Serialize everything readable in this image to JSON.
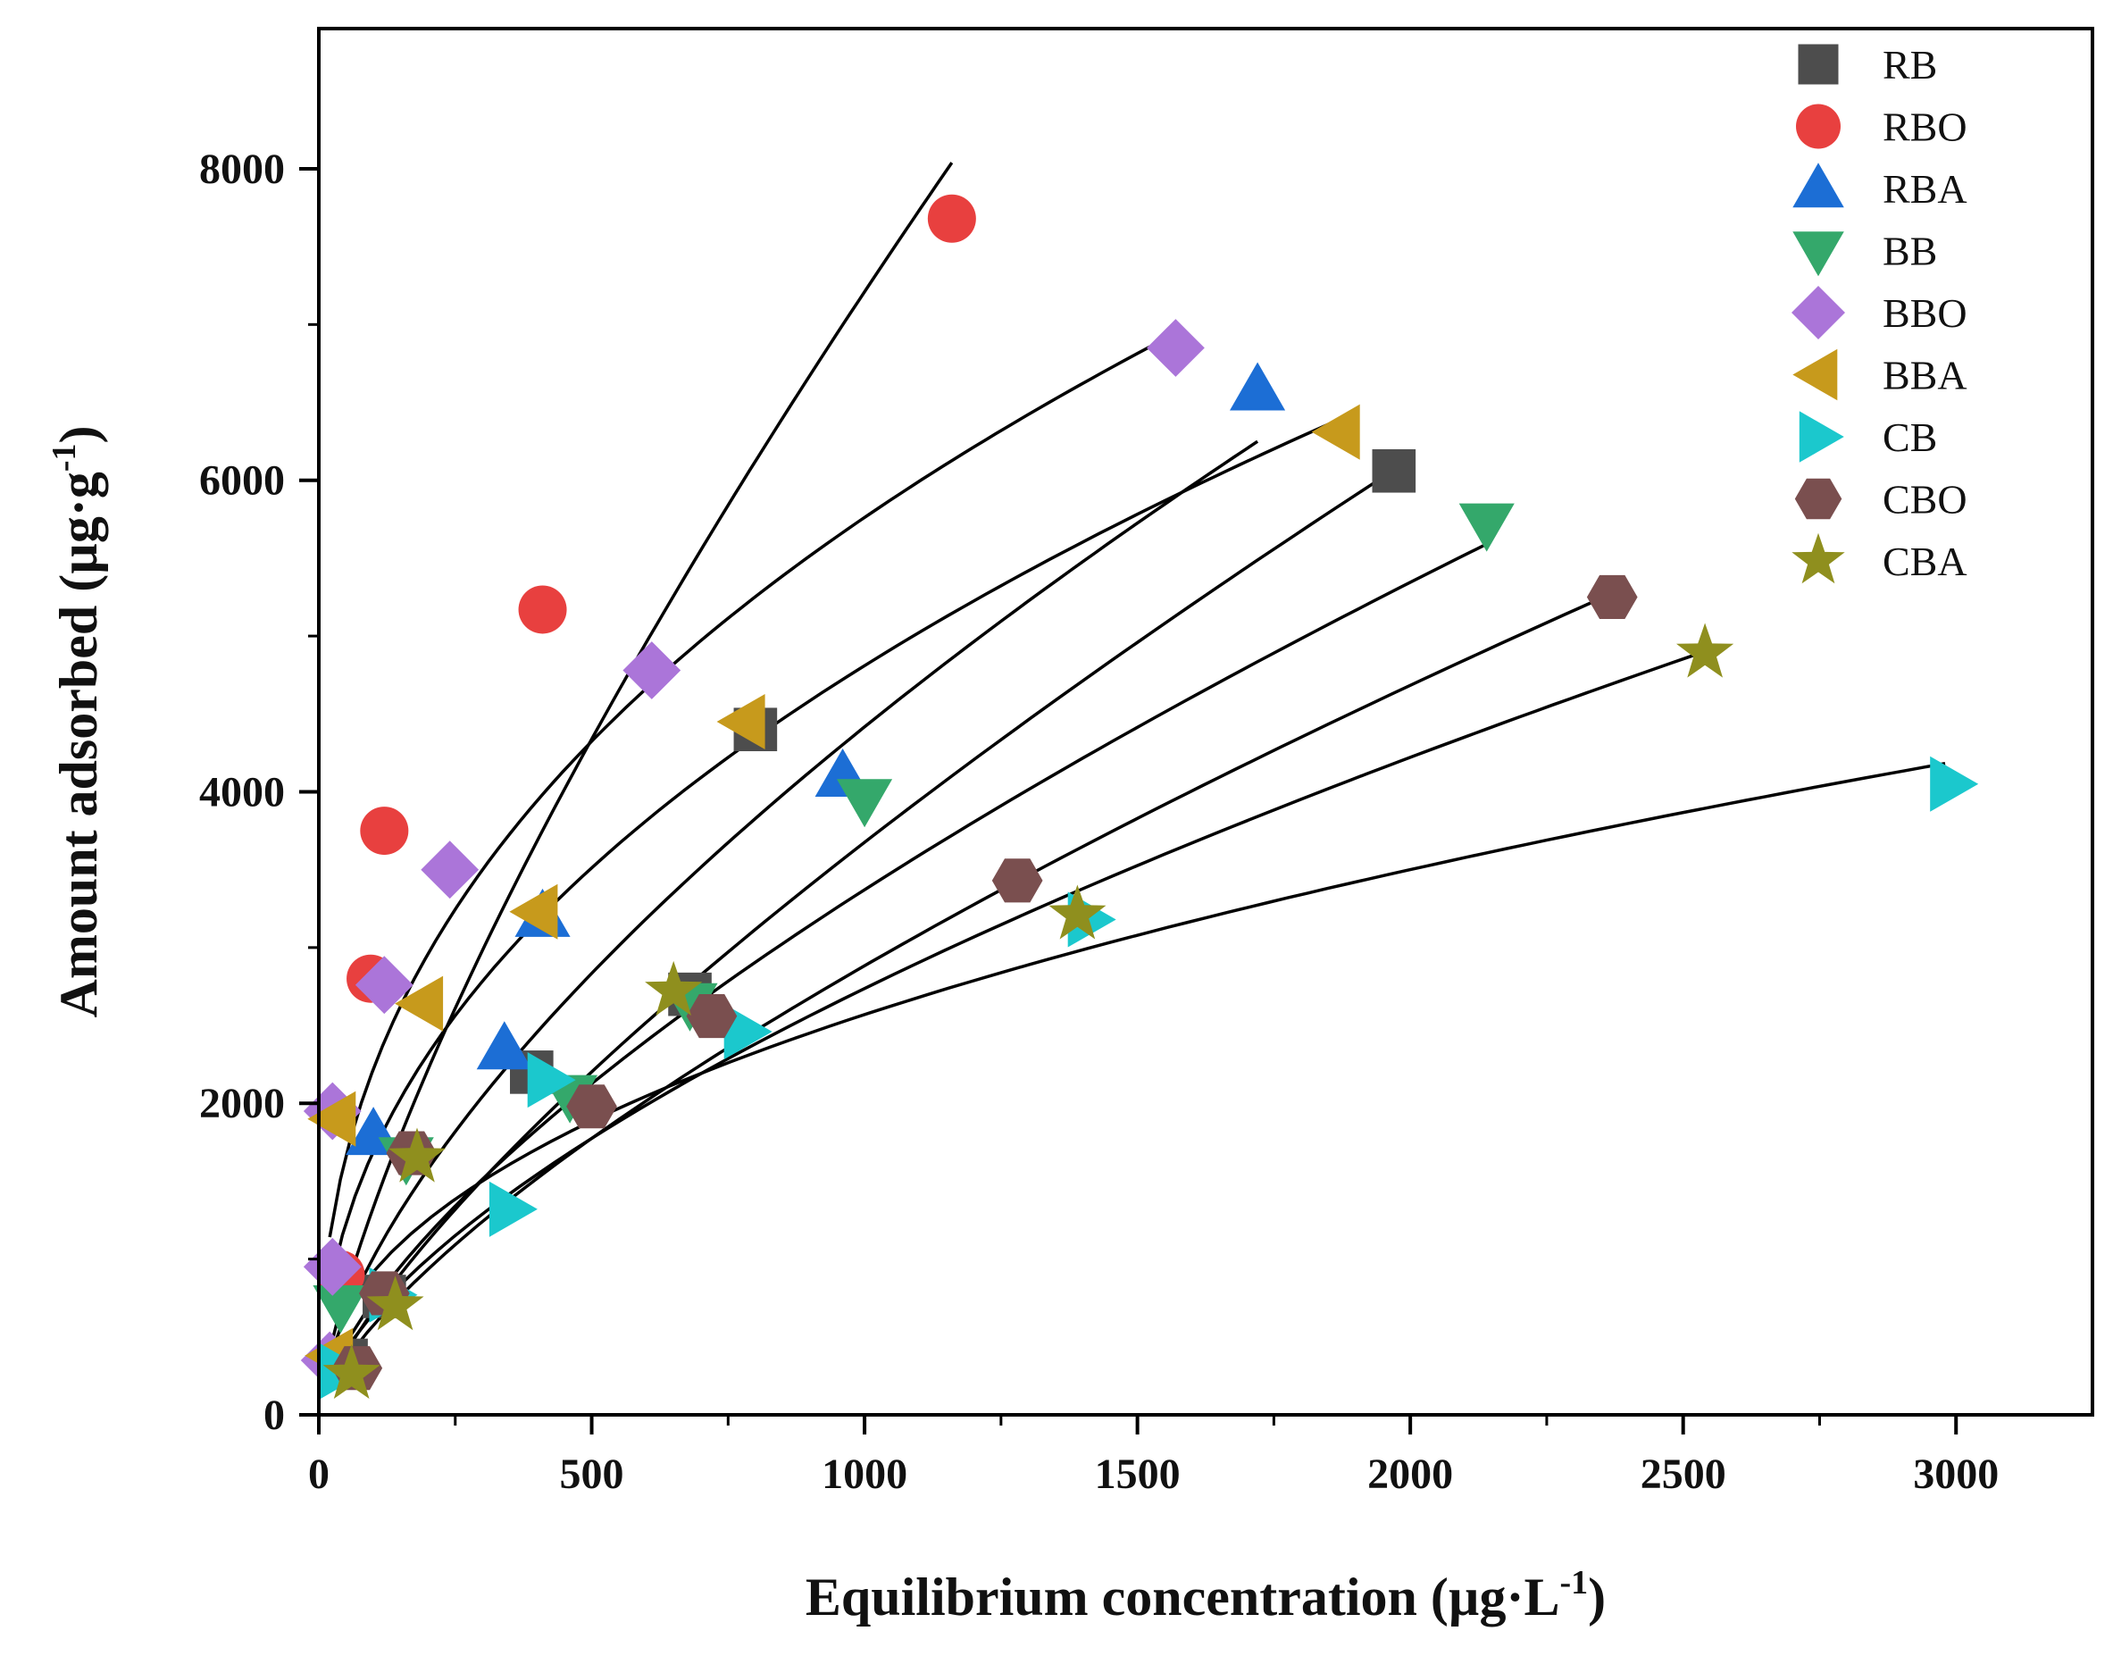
{
  "chart_data": {
    "type": "scatter",
    "xlabel": "Equilibrium concentration (µg·L",
    "xlabel_sup": "-1",
    "xlabel_end": ")",
    "ylabel": "Amount adsorbed (µg·g",
    "ylabel_sup": "-1",
    "ylabel_end": ")",
    "xlim": [
      0,
      3250
    ],
    "ylim": [
      0,
      8900
    ],
    "xticks": [
      0,
      500,
      1000,
      1500,
      2000,
      2500,
      3000
    ],
    "yticks": [
      0,
      2000,
      4000,
      6000,
      8000
    ],
    "legend_position": "top-right",
    "series": [
      {
        "name": "RB",
        "marker": "square",
        "color": "#4d4d4d",
        "points": [
          [
            50,
            350
          ],
          [
            120,
            760
          ],
          [
            390,
            2200
          ],
          [
            680,
            2700
          ],
          [
            800,
            4400
          ],
          [
            1970,
            6060
          ]
        ],
        "fit": {
          "k": 22.3,
          "n": 0.739,
          "xmin": 20,
          "xmax": 1960
        }
      },
      {
        "name": "RBO",
        "marker": "circle",
        "color": "#e8403f",
        "points": [
          [
            40,
            900
          ],
          [
            95,
            2800
          ],
          [
            120,
            3750
          ],
          [
            410,
            5170
          ],
          [
            1160,
            7680
          ]
        ],
        "fit": {
          "k": 45.6,
          "n": 0.733,
          "xmin": 20,
          "xmax": 1160
        }
      },
      {
        "name": "RBA",
        "marker": "triangle-up",
        "color": "#1c6ed5",
        "points": [
          [
            100,
            1800
          ],
          [
            340,
            2350
          ],
          [
            410,
            3200
          ],
          [
            960,
            4100
          ],
          [
            1720,
            6580
          ]
        ],
        "fit": {
          "k": 53.1,
          "n": 0.64,
          "xmin": 20,
          "xmax": 1720
        }
      },
      {
        "name": "BB",
        "marker": "triangle-down",
        "color": "#34a86b",
        "points": [
          [
            40,
            700
          ],
          [
            160,
            1650
          ],
          [
            460,
            2050
          ],
          [
            680,
            2640
          ],
          [
            1000,
            3950
          ],
          [
            2140,
            5720
          ]
        ],
        "fit": {
          "k": 34.1,
          "n": 0.665,
          "xmin": 30,
          "xmax": 2140
        }
      },
      {
        "name": "BBO",
        "marker": "diamond",
        "color": "#ab75d9",
        "points": [
          [
            20,
            350
          ],
          [
            25,
            950
          ],
          [
            25,
            1950
          ],
          [
            120,
            2760
          ],
          [
            240,
            3500
          ],
          [
            610,
            4780
          ],
          [
            1570,
            6850
          ]
        ],
        "fit": {
          "k": 330,
          "n": 0.414,
          "xmin": 20,
          "xmax": 1570
        }
      },
      {
        "name": "BBA",
        "marker": "triangle-left",
        "color": "#c79a1c",
        "points": [
          [
            25,
            380
          ],
          [
            30,
            1900
          ],
          [
            190,
            2640
          ],
          [
            400,
            3230
          ],
          [
            780,
            4450
          ],
          [
            1870,
            6310
          ]
        ],
        "fit": {
          "k": 209,
          "n": 0.454,
          "xmin": 20,
          "xmax": 1870
        }
      },
      {
        "name": "CB",
        "marker": "triangle-right",
        "color": "#1bc8cd",
        "points": [
          [
            40,
            280
          ],
          [
            130,
            770
          ],
          [
            350,
            1320
          ],
          [
            420,
            2150
          ],
          [
            780,
            2460
          ],
          [
            1410,
            3180
          ],
          [
            2990,
            4050
          ]
        ],
        "fit": {
          "k": 118,
          "n": 0.446,
          "xmin": 60,
          "xmax": 2980
        }
      },
      {
        "name": "CBO",
        "marker": "hexagon",
        "color": "#7a4f4f",
        "points": [
          [
            70,
            300
          ],
          [
            120,
            780
          ],
          [
            170,
            1680
          ],
          [
            500,
            1980
          ],
          [
            720,
            2560
          ],
          [
            1280,
            3430
          ],
          [
            2370,
            5250
          ]
        ],
        "fit": {
          "k": 22.9,
          "n": 0.7,
          "xmin": 60,
          "xmax": 2370
        }
      },
      {
        "name": "CBA",
        "marker": "star",
        "color": "#8f8f1e",
        "points": [
          [
            60,
            260
          ],
          [
            140,
            700
          ],
          [
            180,
            1650
          ],
          [
            650,
            2720
          ],
          [
            1390,
            3210
          ],
          [
            2540,
            4890
          ]
        ],
        "fit": {
          "k": 36.5,
          "n": 0.625,
          "xmin": 60,
          "xmax": 2540
        }
      }
    ]
  }
}
